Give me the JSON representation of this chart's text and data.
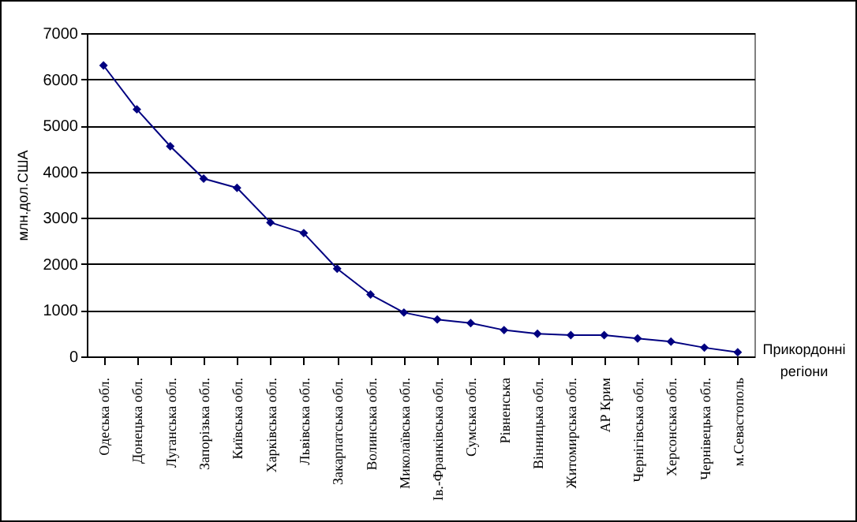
{
  "chart_data": {
    "type": "line",
    "ylabel": "млн.дол.США",
    "xlabel": "Прикордонні регіони",
    "categories": [
      "Одеська обл.",
      "Донецька обл.",
      "Луганська обл.",
      "Запорізька обл.",
      "Київська обл.",
      "Харківська обл.",
      "Львівська обл.",
      "Закарпатська обл.",
      "Волинська обл.",
      "Миколаївська обл.",
      "Ів.-Франківська обл.",
      "Сумська обл.",
      "Рівненська",
      "Вінницька обл.",
      "Житомирська обл.",
      "АР Крим",
      "Чернігівська обл.",
      "Херсонська обл.",
      "Чернівецька обл.",
      "м.Севастополь"
    ],
    "series": [
      {
        "color": "#000080",
        "values": [
          6300,
          5350,
          4550,
          3850,
          3650,
          2900,
          2670,
          1900,
          1340,
          950,
          800,
          720,
          570,
          490,
          460,
          460,
          390,
          320,
          190,
          90
        ]
      }
    ],
    "ylim": [
      0,
      7000
    ],
    "yticks": [
      0,
      1000,
      2000,
      3000,
      4000,
      5000,
      6000,
      7000
    ],
    "grid": "y",
    "marker": "diamond",
    "line_style": "solid"
  }
}
